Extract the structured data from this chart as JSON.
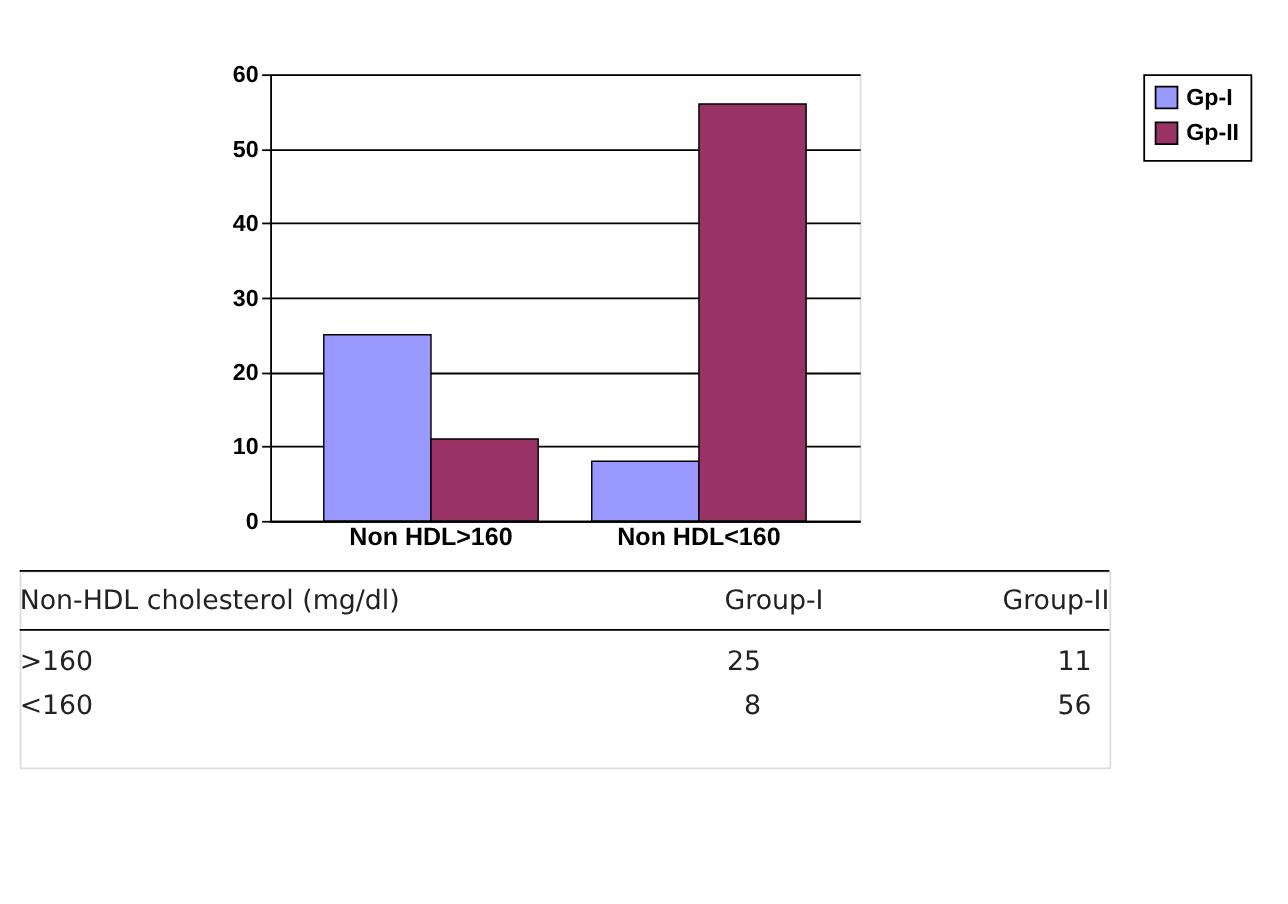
{
  "chart_data": {
    "type": "bar",
    "categories": [
      "Non HDL>160",
      "Non HDL<160"
    ],
    "series": [
      {
        "name": "Gp-I",
        "color": "#9999ff",
        "values": [
          25,
          8
        ]
      },
      {
        "name": "Gp-II",
        "color": "#993366",
        "values": [
          11,
          56
        ]
      }
    ],
    "ylim": [
      0,
      60
    ],
    "yticks": [
      0,
      10,
      20,
      30,
      40,
      50,
      60
    ],
    "grid": "y",
    "legend": "right",
    "annotations": [
      "Non-HDL cholesterol (mg/dl)",
      "Group-I",
      "Group-II",
      ">160",
      "25",
      "11",
      "<160",
      "8",
      "56"
    ]
  }
}
